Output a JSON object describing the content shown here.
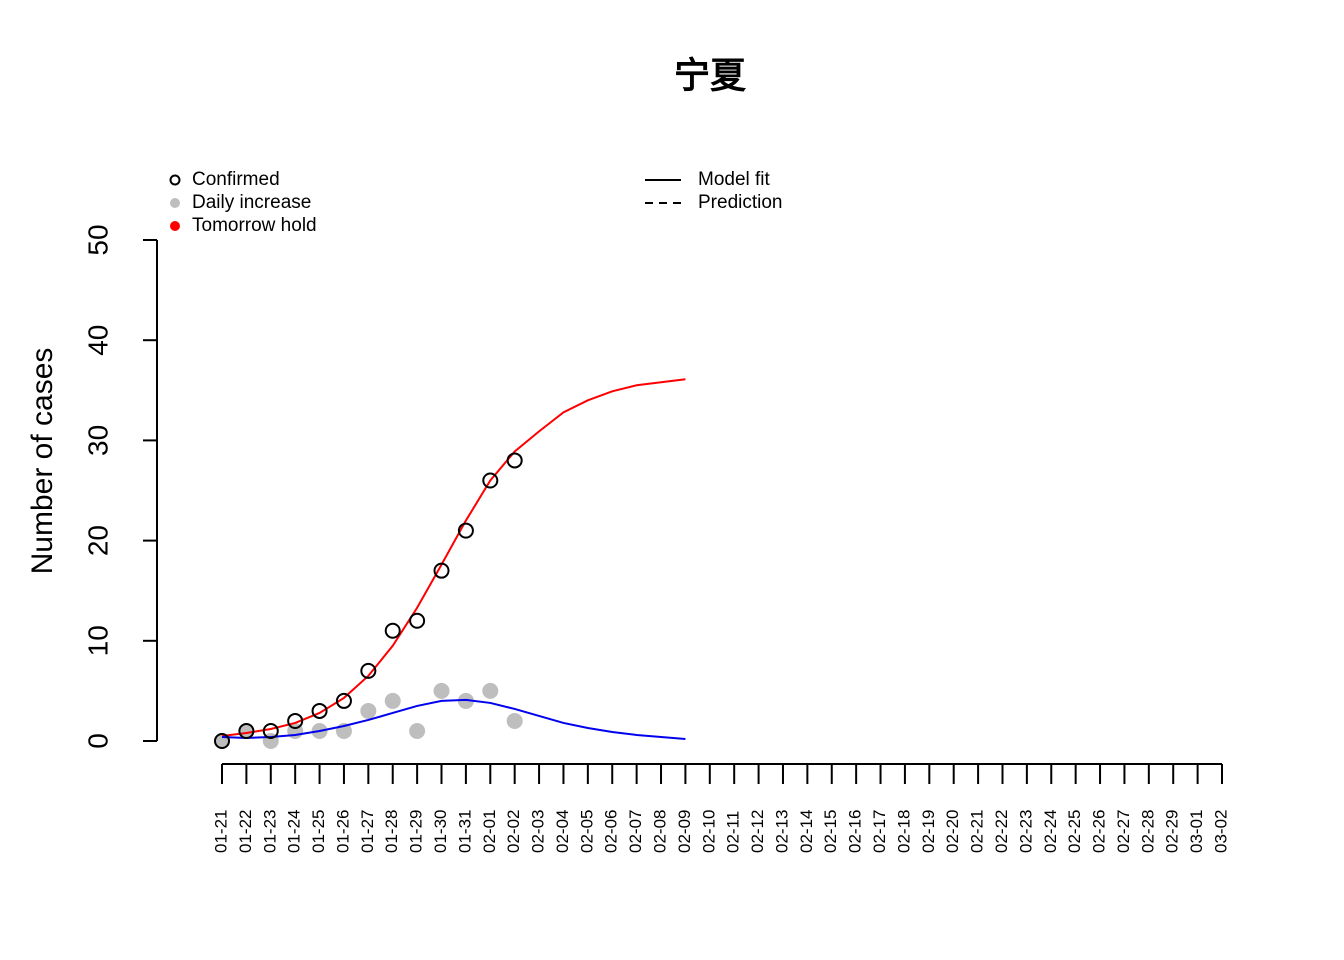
{
  "chart_data": {
    "type": "scatter-fit",
    "title": "宁夏",
    "ylabel": "Number of cases",
    "categories": [
      "01-21",
      "01-22",
      "01-23",
      "01-24",
      "01-25",
      "01-26",
      "01-27",
      "01-28",
      "01-29",
      "01-30",
      "01-31",
      "02-01",
      "02-02",
      "02-03",
      "02-04",
      "02-05",
      "02-06",
      "02-07",
      "02-08",
      "02-09",
      "02-10",
      "02-11",
      "02-12",
      "02-13",
      "02-14",
      "02-15",
      "02-16",
      "02-17",
      "02-18",
      "02-19",
      "02-20",
      "02-21",
      "02-22",
      "02-23",
      "02-24",
      "02-25",
      "02-26",
      "02-27",
      "02-28",
      "02-29",
      "03-01",
      "03-02"
    ],
    "ylim": [
      0,
      50
    ],
    "yticks": [
      0,
      10,
      20,
      30,
      40,
      50
    ],
    "series": [
      {
        "name": "Confirmed",
        "marker": "open-circle",
        "color": "#000000",
        "values": [
          0,
          1,
          1,
          2,
          3,
          4,
          7,
          11,
          12,
          17,
          21,
          26,
          28,
          null,
          null,
          null,
          null,
          null,
          null,
          null,
          null,
          null,
          null,
          null,
          null,
          null,
          null,
          null,
          null,
          null,
          null,
          null,
          null,
          null,
          null,
          null,
          null,
          null,
          null,
          null,
          null,
          null
        ]
      },
      {
        "name": "Daily increase",
        "marker": "dot",
        "color": "#bebebe",
        "values": [
          0,
          1,
          0,
          1,
          1,
          1,
          3,
          4,
          1,
          5,
          4,
          5,
          2,
          null,
          null,
          null,
          null,
          null,
          null,
          null,
          null,
          null,
          null,
          null,
          null,
          null,
          null,
          null,
          null,
          null,
          null,
          null,
          null,
          null,
          null,
          null,
          null,
          null,
          null,
          null,
          null,
          null
        ]
      },
      {
        "name": "Tomorrow hold",
        "marker": "dot",
        "color": "#ff0000",
        "values": [
          null,
          null,
          null,
          null,
          null,
          null,
          null,
          null,
          null,
          null,
          null,
          null,
          null,
          null,
          null,
          null,
          null,
          null,
          null,
          null,
          null,
          null,
          null,
          null,
          null,
          null,
          null,
          null,
          null,
          null,
          null,
          null,
          null,
          null,
          null,
          null,
          null,
          null,
          null,
          null,
          null,
          null
        ]
      }
    ],
    "fits": [
      {
        "color": "#ff0000",
        "values": [
          0.5,
          0.8,
          1.2,
          1.8,
          2.8,
          4.3,
          6.5,
          9.5,
          13.3,
          17.6,
          22.0,
          26.0,
          28.9,
          30.9,
          32.8,
          34.0,
          34.9,
          35.5,
          35.8,
          36.1,
          null,
          null,
          null,
          null,
          null,
          null,
          null,
          null,
          null,
          null,
          null,
          null,
          null,
          null,
          null,
          null,
          null,
          null,
          null,
          null,
          null,
          null
        ]
      },
      {
        "color": "#0000ee",
        "values": [
          0.4,
          0.3,
          0.4,
          0.6,
          1.0,
          1.5,
          2.1,
          2.8,
          3.5,
          4.0,
          4.1,
          3.8,
          3.2,
          2.5,
          1.8,
          1.3,
          0.9,
          0.6,
          0.4,
          0.2,
          null,
          null,
          null,
          null,
          null,
          null,
          null,
          null,
          null,
          null,
          null,
          null,
          null,
          null,
          null,
          null,
          null,
          null,
          null,
          null,
          null,
          null
        ]
      }
    ],
    "line_legend": [
      {
        "name": "Model fit",
        "dash": "none"
      },
      {
        "name": "Prediction",
        "dash": "8,6"
      }
    ]
  }
}
